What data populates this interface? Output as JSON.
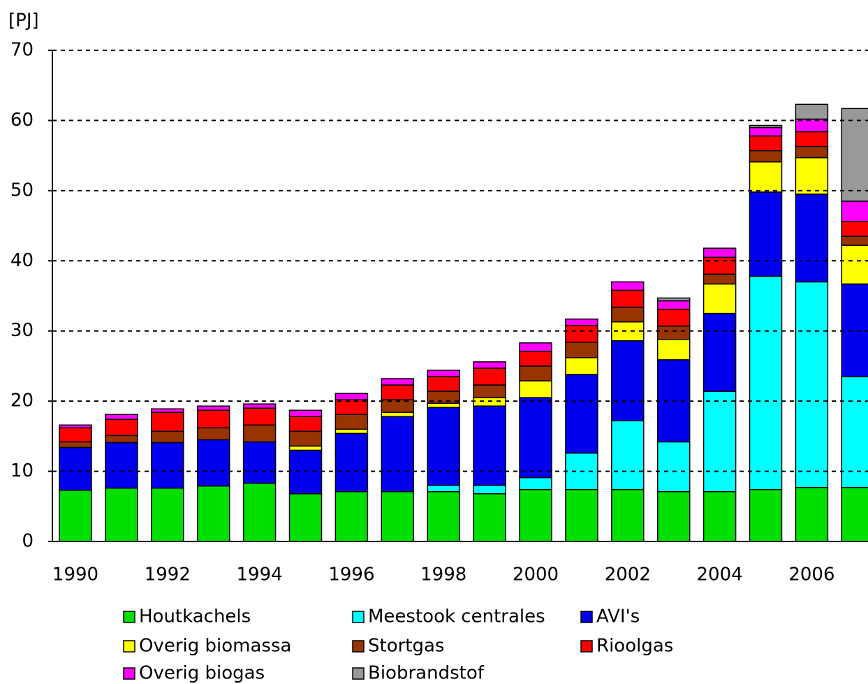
{
  "chart_data": {
    "type": "stacked_bar",
    "y_label": "[PJ]",
    "categories": [
      "1990",
      null,
      "1992",
      null,
      "1994",
      null,
      "1996",
      null,
      "1998",
      null,
      "2000",
      null,
      "2002",
      null,
      "2004",
      null,
      "2006",
      null
    ],
    "series": [
      {
        "name": "Houtkachels",
        "color": "#00e000",
        "values": [
          7.3,
          7.6,
          7.6,
          7.9,
          8.3,
          6.8,
          7.1,
          7.1,
          7.1,
          6.8,
          7.4,
          7.4,
          7.4,
          7.1,
          7.1,
          7.4,
          7.7,
          7.7
        ]
      },
      {
        "name": "Meestook centrales",
        "color": "#00ffff",
        "values": [
          0,
          0,
          0,
          0,
          0,
          0,
          0,
          0,
          0.9,
          1.2,
          1.7,
          5.2,
          9.8,
          7.1,
          14.3,
          30.4,
          29.3,
          15.8
        ]
      },
      {
        "name": "AVI's",
        "color": "#0000ee",
        "values": [
          6.1,
          6.5,
          6.5,
          6.6,
          5.9,
          6.2,
          8.3,
          10.7,
          11.1,
          11.3,
          11.4,
          11.2,
          11.4,
          11.7,
          11.1,
          12.0,
          12.5,
          13.2
        ]
      },
      {
        "name": "Overig biomassa",
        "color": "#ffff00",
        "values": [
          0,
          0,
          0,
          0,
          0,
          0.6,
          0.6,
          0.6,
          0.6,
          1.2,
          2.4,
          2.4,
          2.7,
          2.9,
          4.2,
          4.3,
          5.2,
          5.5
        ]
      },
      {
        "name": "Stortgas",
        "color": "#993300",
        "values": [
          0.8,
          1.0,
          1.6,
          1.7,
          2.4,
          2.1,
          2.1,
          1.8,
          1.7,
          1.8,
          2.1,
          2.2,
          2.1,
          1.9,
          1.4,
          1.6,
          1.6,
          1.3
        ]
      },
      {
        "name": "Rioolgas",
        "color": "#ff0000",
        "values": [
          2.0,
          2.3,
          2.7,
          2.5,
          2.4,
          2.1,
          2.1,
          2.1,
          2.1,
          2.4,
          2.1,
          2.4,
          2.4,
          2.4,
          2.4,
          2.1,
          2.1,
          2.1
        ]
      },
      {
        "name": "Overig biogas",
        "color": "#ff00ff",
        "values": [
          0.4,
          0.7,
          0.5,
          0.6,
          0.6,
          0.9,
          0.9,
          0.9,
          0.9,
          0.9,
          1.2,
          0.9,
          1.2,
          1.2,
          1.3,
          1.2,
          1.8,
          2.9
        ]
      },
      {
        "name": "Biobrandstof",
        "color": "#999999",
        "values": [
          0,
          0,
          0,
          0,
          0,
          0,
          0,
          0,
          0,
          0,
          0,
          0,
          0,
          0.4,
          0,
          0.3,
          2.1,
          13.2
        ]
      }
    ],
    "ylim": [
      0,
      70
    ],
    "yticks": [
      0,
      10,
      20,
      30,
      40,
      50,
      60,
      70
    ],
    "grid": true
  }
}
